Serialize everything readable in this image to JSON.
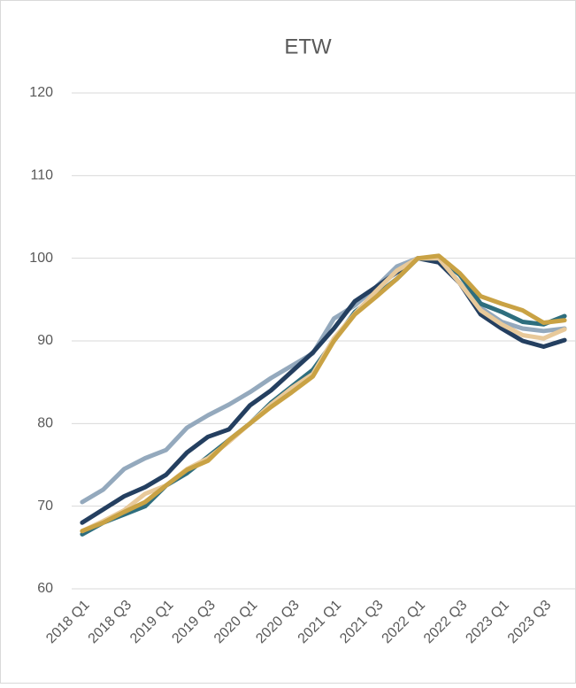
{
  "chart_data": {
    "type": "line",
    "title": "ETW",
    "categories": [
      "2018 Q1",
      null,
      "2018 Q3",
      null,
      "2019 Q1",
      null,
      "2019 Q3",
      null,
      "2020 Q1",
      null,
      "2020 Q3",
      null,
      "2021 Q1",
      null,
      "2021 Q3",
      null,
      "2022 Q1",
      null,
      "2022 Q3",
      null,
      "2023 Q1",
      null,
      "2023 Q3",
      null
    ],
    "series": [
      {
        "color": "#94a9bd",
        "values": [
          70.5,
          72,
          74.5,
          75.8,
          76.8,
          79.5,
          81,
          82.3,
          83.8,
          85.5,
          87,
          88.5,
          92.7,
          94.3,
          96.5,
          99,
          100,
          99.8,
          97,
          94,
          92.3,
          91.5,
          91.2,
          91.5
        ]
      },
      {
        "color": "#243f60",
        "values": [
          68,
          69.6,
          71.2,
          72.3,
          73.8,
          76.5,
          78.4,
          79.3,
          82.2,
          84,
          86.3,
          88.6,
          91.5,
          94.8,
          96.5,
          98.3,
          100,
          99.5,
          97,
          93.2,
          91.5,
          90,
          89.3,
          90.1
        ]
      },
      {
        "color": "#2e6e7e",
        "values": [
          66.6,
          68,
          69,
          70,
          72.5,
          74,
          76,
          78,
          80,
          82.5,
          84.5,
          86.5,
          90,
          93.5,
          95.5,
          97.5,
          100,
          100,
          98,
          94.5,
          93.5,
          92.3,
          92,
          93
        ]
      },
      {
        "color": "#e8c99a",
        "values": [
          67,
          68.2,
          69.5,
          71.5,
          72.5,
          74.5,
          75.8,
          77.8,
          80,
          82.3,
          84.3,
          86,
          90.3,
          93.3,
          96,
          98.5,
          100,
          100,
          97,
          93.7,
          92,
          90.7,
          90.3,
          91.4
        ]
      },
      {
        "color": "#c9a244",
        "values": [
          67,
          68,
          69.3,
          70.5,
          72.5,
          74.4,
          75.5,
          78,
          80,
          82,
          83.8,
          85.7,
          90,
          93.2,
          95.3,
          97.5,
          100,
          100.3,
          98.2,
          95.4,
          94.5,
          93.7,
          92.2,
          92.5
        ]
      }
    ],
    "ylim": [
      60,
      120
    ],
    "yticks": [
      60,
      70,
      80,
      90,
      100,
      110,
      120
    ],
    "grid": true
  }
}
